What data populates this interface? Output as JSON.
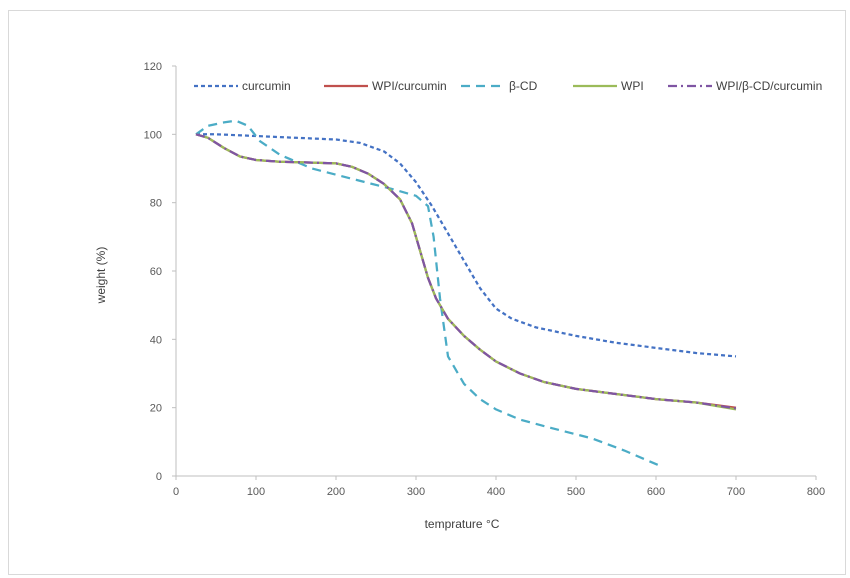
{
  "chart_data": {
    "type": "line",
    "title": "",
    "xlabel": "temprature °C",
    "ylabel": "weight (%)",
    "xlim": [
      0,
      800
    ],
    "ylim": [
      0,
      120
    ],
    "xticks": [
      0,
      100,
      200,
      300,
      400,
      500,
      600,
      700,
      800
    ],
    "yticks": [
      0,
      20,
      40,
      60,
      80,
      100,
      120
    ],
    "grid": false,
    "legend_position": "top",
    "series": [
      {
        "name": "curcumin",
        "color": "#4472c4",
        "dash": "short-dash",
        "x": [
          25,
          50,
          100,
          150,
          200,
          230,
          260,
          280,
          300,
          320,
          340,
          360,
          380,
          400,
          420,
          450,
          500,
          550,
          600,
          650,
          700
        ],
        "y": [
          100,
          100,
          99.5,
          99,
          98.5,
          97.5,
          95,
          91.5,
          86,
          79,
          71,
          63,
          55,
          49,
          46,
          43.5,
          41,
          39,
          37.5,
          36,
          35
        ]
      },
      {
        "name": "WPI/curcumin",
        "color": "#c0504d",
        "dash": "solid",
        "x": [
          25,
          40,
          60,
          80,
          100,
          130,
          160,
          200,
          220,
          240,
          260,
          280,
          295,
          305,
          315,
          325,
          340,
          360,
          380,
          400,
          430,
          460,
          500,
          550,
          600,
          650,
          700
        ],
        "y": [
          100,
          99,
          96,
          93.5,
          92.5,
          92,
          91.8,
          91.5,
          90.5,
          88.5,
          85.5,
          81,
          74,
          66,
          58,
          52,
          46,
          41,
          37,
          33.5,
          30,
          27.5,
          25.5,
          24,
          22.5,
          21.5,
          20
        ]
      },
      {
        "name": "β-CD",
        "color": "#4bacc6",
        "dash": "long-dash",
        "x": [
          25,
          40,
          60,
          75,
          90,
          105,
          130,
          170,
          220,
          270,
          300,
          315,
          322,
          330,
          340,
          360,
          380,
          400,
          430,
          470,
          520,
          560,
          605
        ],
        "y": [
          100,
          102.5,
          103.5,
          104,
          102.5,
          98,
          94,
          90,
          87,
          84,
          82,
          79,
          70,
          52,
          35,
          27,
          22.5,
          19.5,
          16.5,
          14,
          11,
          7.5,
          3
        ]
      },
      {
        "name": "WPI",
        "color": "#9bbb59",
        "dash": "solid",
        "x": [
          25,
          40,
          60,
          80,
          100,
          130,
          160,
          200,
          220,
          240,
          260,
          280,
          295,
          305,
          315,
          325,
          340,
          360,
          380,
          400,
          430,
          460,
          500,
          550,
          600,
          650,
          700
        ],
        "y": [
          100,
          99,
          96,
          93.5,
          92.5,
          92,
          91.8,
          91.5,
          90.5,
          88.5,
          85.5,
          81,
          74,
          66,
          58,
          52,
          46,
          41,
          37,
          33.5,
          30,
          27.5,
          25.5,
          24,
          22.5,
          21.5,
          19.5
        ]
      },
      {
        "name": "WPI/β-CD/curcumin",
        "color": "#7f55a3",
        "dash": "dash-dot",
        "x": [
          25,
          40,
          60,
          80,
          100,
          130,
          160,
          200,
          220,
          240,
          260,
          280,
          295,
          305,
          315,
          325,
          340,
          360,
          380,
          400,
          430,
          460,
          500,
          550,
          600,
          650,
          700
        ],
        "y": [
          100,
          99,
          96,
          93.5,
          92.5,
          92,
          91.8,
          91.5,
          90.5,
          88.5,
          85.5,
          81,
          74,
          66,
          58,
          52,
          46,
          41,
          37,
          33.5,
          30,
          27.5,
          25.5,
          24,
          22.5,
          21.5,
          19.8
        ]
      }
    ]
  }
}
